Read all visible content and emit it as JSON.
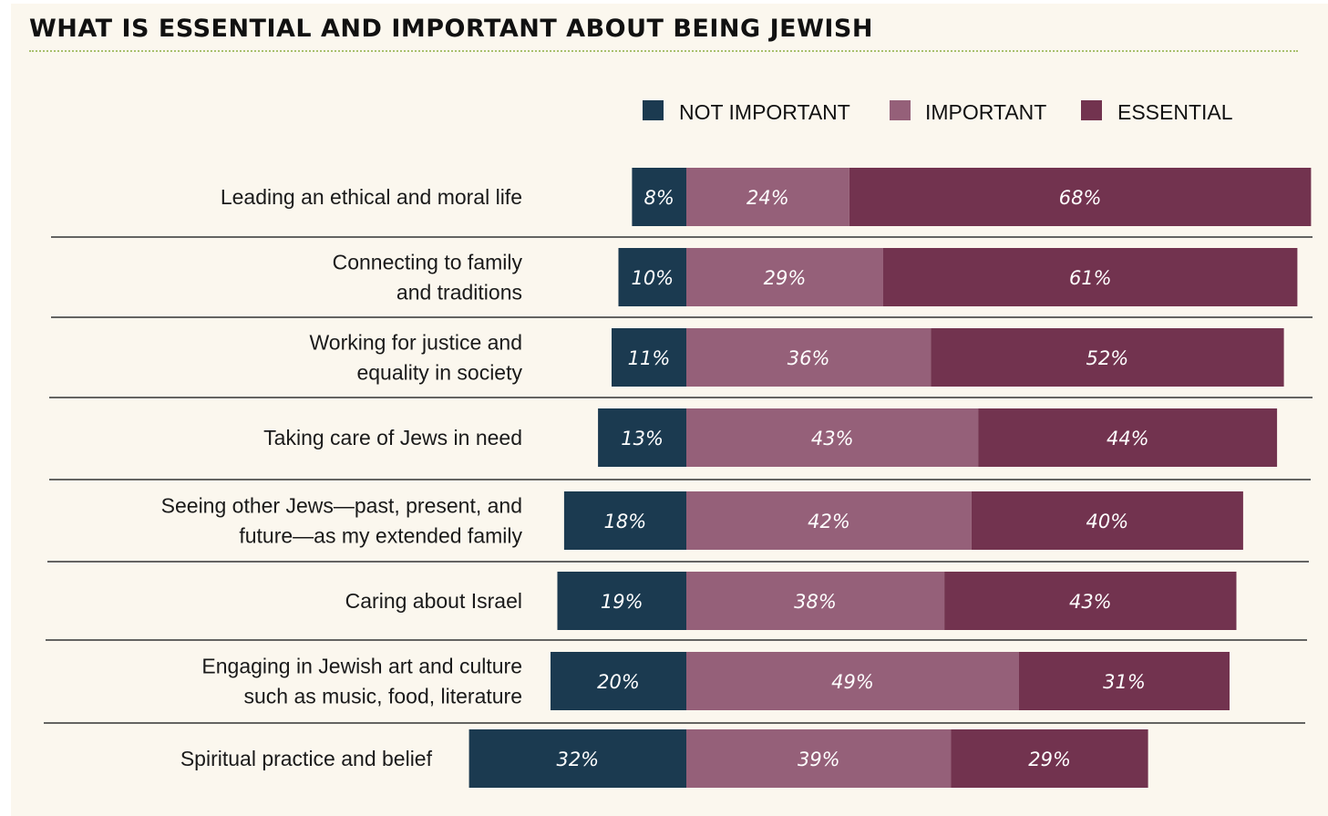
{
  "chart_data": {
    "type": "bar",
    "orientation": "horizontal",
    "stacked": true,
    "title": "WHAT IS ESSENTIAL AND IMPORTANT ABOUT BEING JEWISH",
    "legend_position": "top-right",
    "grid": false,
    "series": [
      {
        "name": "NOT IMPORTANT",
        "color": "#1b3a50",
        "values": [
          8,
          10,
          11,
          13,
          18,
          19,
          20,
          32
        ],
        "labels": [
          "8%",
          "10%",
          "11%",
          "13%",
          "18%",
          "19%",
          "20%",
          "32%"
        ]
      },
      {
        "name": "IMPORTANT",
        "color": "#956079",
        "values": [
          24,
          29,
          36,
          43,
          42,
          38,
          49,
          39
        ],
        "labels": [
          "24%",
          "29%",
          "36%",
          "43%",
          "42%",
          "38%",
          "49%",
          "39%"
        ]
      },
      {
        "name": "ESSENTIAL",
        "color": "#72334f",
        "values": [
          68,
          61,
          52,
          44,
          40,
          43,
          31,
          29
        ],
        "labels": [
          "68%",
          "61%",
          "52%",
          "44%",
          "40%",
          "43%",
          "31%",
          "29%"
        ]
      }
    ],
    "categories": [
      [
        "Leading an ethical and moral life"
      ],
      [
        "Connecting to family",
        "and traditions"
      ],
      [
        "Working for justice and",
        "equality in society"
      ],
      [
        "Taking care of Jews in need"
      ],
      [
        "Seeing other Jews—past, present, and",
        "future—as my extended family"
      ],
      [
        "Caring about Israel"
      ],
      [
        "Engaging in Jewish art and culture",
        "such as music, food, literature"
      ],
      [
        "Spiritual practice and belief"
      ]
    ]
  }
}
